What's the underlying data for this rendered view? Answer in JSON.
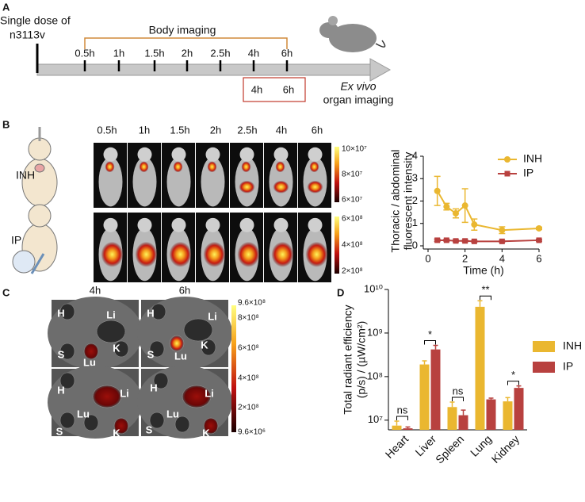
{
  "panel_a": {
    "label": "A",
    "dose_text": [
      "Single dose of",
      "n3113v"
    ],
    "bracket_label": "Body imaging",
    "timepoints": [
      "0.5h",
      "1h",
      "1.5h",
      "2h",
      "2.5h",
      "4h",
      "6h"
    ],
    "ex_vivo_timepoints": [
      "4h",
      "6h"
    ],
    "ex_vivo": "Ex vivo",
    "organ_imaging": "organ imaging"
  },
  "panel_b": {
    "label": "B",
    "groups": [
      "INH",
      "IP"
    ],
    "colorbars": [
      [
        "10×10⁷",
        "8×10⁷",
        "6×10⁷"
      ],
      [
        "6×10⁸",
        "4×10⁸",
        "2×10⁸"
      ]
    ]
  },
  "panel_c": {
    "label": "C",
    "timepoints": [
      "4h",
      "6h"
    ],
    "organs": [
      "H",
      "Li",
      "S",
      "Lu",
      "K"
    ],
    "colorbar": [
      "9.6×10⁸",
      "8×10⁸",
      "6×10⁸",
      "4×10⁸",
      "2×10⁸",
      "9.6×10⁶"
    ]
  },
  "panel_d": {
    "label": "D"
  },
  "chart_data": [
    {
      "type": "line",
      "xlabel": "Time (h)",
      "ylabel": [
        "Thoracic / abdominal",
        "fluorescent intensity"
      ],
      "x": [
        0.5,
        1,
        1.5,
        2,
        2.5,
        4,
        6
      ],
      "xlim": [
        0,
        6
      ],
      "xticks": [
        0,
        2,
        4,
        6
      ],
      "ylim": [
        0,
        4
      ],
      "yticks": [
        0,
        1,
        2,
        3,
        4
      ],
      "series": [
        {
          "name": "INH",
          "color": "#eab730",
          "marker": "circle",
          "values": [
            2.45,
            1.75,
            1.45,
            1.8,
            0.95,
            0.7,
            0.78
          ],
          "errors": [
            0.65,
            0.15,
            0.2,
            0.75,
            0.25,
            0.15,
            0.05
          ]
        },
        {
          "name": "IP",
          "color": "#b8413f",
          "marker": "square",
          "values": [
            0.25,
            0.25,
            0.22,
            0.22,
            0.2,
            0.2,
            0.25
          ],
          "errors": [
            0.05,
            0.04,
            0.04,
            0.04,
            0.03,
            0.03,
            0.04
          ]
        }
      ]
    },
    {
      "type": "bar",
      "ylabel": [
        "Total radiant efficiency",
        "(p/s) / (µW/cm²)"
      ],
      "log_scale": true,
      "categories": [
        "Heart",
        "Liver",
        "Spleen",
        "Lung",
        "Kidney"
      ],
      "ylim": [
        6000000,
        10000000000
      ],
      "yticks": [
        {
          "value": 10000000,
          "label": "10⁷"
        },
        {
          "value": 100000000,
          "label": "10⁸"
        },
        {
          "value": 1000000000,
          "label": "10⁹"
        },
        {
          "value": 10000000000,
          "label": "10¹⁰"
        }
      ],
      "significance": [
        "ns",
        "*",
        "ns",
        "**",
        "*"
      ],
      "series": [
        {
          "name": "INH",
          "color": "#eab730",
          "values": [
            7500000,
            190000000,
            20000000,
            4000000000,
            27000000
          ],
          "errors": [
            2000000,
            40000000,
            6000000,
            1500000000,
            6000000
          ]
        },
        {
          "name": "IP",
          "color": "#b8413f",
          "values": [
            6500000,
            420000000,
            13000000,
            30000000,
            55000000
          ],
          "errors": [
            500000,
            100000000,
            4000000,
            2000000,
            6000000
          ]
        }
      ]
    }
  ]
}
